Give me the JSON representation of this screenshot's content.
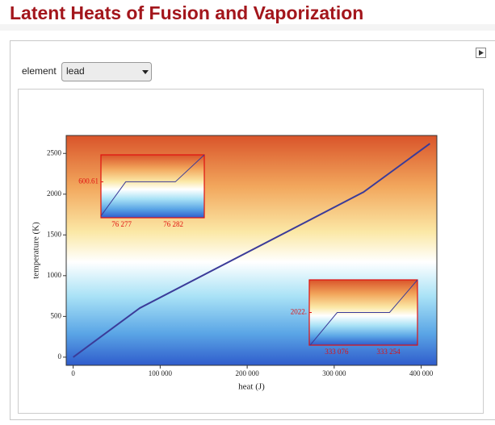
{
  "header": {
    "title": "Latent Heats of Fusion and Vaporization"
  },
  "controls": {
    "label": "element",
    "value": "lead"
  },
  "chart_data": [
    {
      "type": "line",
      "xlabel": "heat (J)",
      "ylabel": "temperature (K)",
      "color": "#3b3b99",
      "x": [
        0,
        76277,
        76282,
        333078,
        333258,
        410000
      ],
      "values": [
        0,
        600.61,
        600.61,
        2022,
        2022,
        2620
      ],
      "xlim": [
        -8000,
        418000
      ],
      "ylim": [
        -100,
        2720
      ],
      "xticks": [
        0,
        {
          "value": 100000,
          "label": "100 000"
        },
        {
          "value": 200000,
          "label": "200 000"
        },
        {
          "value": 300000,
          "label": "300 000"
        },
        {
          "value": 400000,
          "label": "400 000"
        }
      ],
      "yticks": [
        0,
        500,
        1000,
        1500,
        2000,
        2500
      ]
    },
    {
      "type": "line",
      "color": "#3b3b99",
      "x": [
        76275,
        76277.4,
        76282.2,
        76285
      ],
      "values": [
        600.591,
        600.61,
        600.61,
        600.625
      ],
      "xlim": [
        76275,
        76285
      ],
      "ylim": [
        600.59,
        600.625
      ],
      "xticks": [
        {
          "value": 76277,
          "label": "76 277"
        },
        {
          "value": 76282,
          "label": "76 282"
        }
      ],
      "yticks": [
        600.61
      ]
    },
    {
      "type": "line",
      "color": "#3b3b99",
      "x": [
        332985,
        333078,
        333258,
        333354
      ],
      "values": [
        2021.25,
        2022,
        2022,
        2022.75
      ],
      "xlim": [
        332982,
        333354
      ],
      "ylim": [
        2021.25,
        2022.75
      ],
      "xticks": [
        {
          "value": 333076,
          "label": "333 076"
        },
        {
          "value": 333254,
          "label": "333 254"
        }
      ],
      "yticks": [
        {
          "value": 2022,
          "label": "2022."
        }
      ]
    }
  ]
}
